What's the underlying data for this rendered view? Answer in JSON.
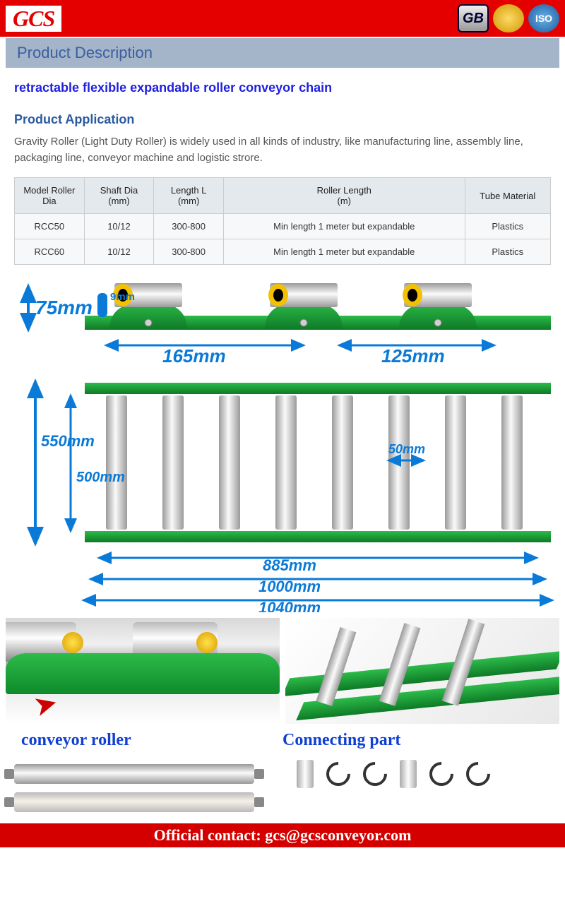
{
  "header": {
    "logo": "GCS",
    "badges": {
      "gb": "GB",
      "iso": "ISO"
    }
  },
  "section_title": "Product Description",
  "product_title": "retractable flexible expandable roller conveyor chain",
  "application_heading": "Product Application",
  "application_text": "Gravity Roller (Light Duty Roller) is widely used in all kinds of industry, like manufacturing line, assembly line, packaging line, conveyor machine and logistic strore.",
  "table": {
    "headers": [
      "Model Roller Dia",
      "Shaft Dia (mm)",
      "Length L (mm)",
      "Roller Length (m)",
      "Tube Material"
    ],
    "rows": [
      [
        "RCC50",
        "10/12",
        "300-800",
        "Min length 1 meter but expandable",
        "Plastics"
      ],
      [
        "RCC60",
        "10/12",
        "300-800",
        "Min length 1 meter but expandable",
        "Plastics"
      ]
    ],
    "col_widths": [
      "13%",
      "13%",
      "13%",
      "45%",
      "16%"
    ]
  },
  "diagram": {
    "colors": {
      "dim": "#0a7ad8",
      "green": "#1fa33a",
      "green_dark": "#0e7a26",
      "metal_light": "#f2f2f2",
      "metal_mid": "#cfcfcf",
      "metal_dark": "#9a9a9a",
      "yellow": "#f2c200",
      "black": "#000"
    },
    "top": {
      "height_label": "75mm",
      "slot_label": "9mm",
      "span1": "165mm",
      "span2": "125mm"
    },
    "bottom": {
      "outer_h": "550mm",
      "inner_h": "500mm",
      "gap": "50mm",
      "inner_w": "885mm",
      "mid_w": "1000mm",
      "outer_w": "1040mm",
      "roller_count": 8
    }
  },
  "photo_labels": {
    "left": "conveyor roller",
    "right": "Connecting part"
  },
  "footer": "Official contact: gcs@gcsconveyor.com"
}
